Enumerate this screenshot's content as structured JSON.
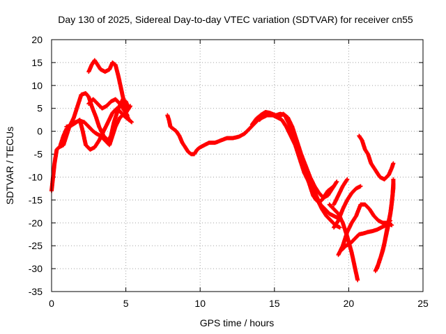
{
  "chart_data": {
    "type": "scatter",
    "title": "Day 130 of 2025, Sidereal Day-to-day VTEC variation (SDTVAR) for receiver cn55",
    "xlabel": "GPS time / hours",
    "ylabel": "SDTVAR / TECUs",
    "xlim": [
      0,
      25
    ],
    "ylim": [
      -35,
      20
    ],
    "xticks": [
      0,
      5,
      10,
      15,
      20,
      25
    ],
    "yticks": [
      -35,
      -30,
      -25,
      -20,
      -15,
      -10,
      -5,
      0,
      5,
      10,
      15,
      20
    ],
    "grid": true,
    "marker": "+",
    "series": [
      {
        "name": "s1",
        "color": "#ff0000",
        "points": [
          [
            0.0,
            -13
          ],
          [
            0.1,
            -10
          ],
          [
            0.2,
            -7
          ],
          [
            0.35,
            -4
          ],
          [
            0.5,
            -3.5
          ],
          [
            0.8,
            -3
          ],
          [
            1.0,
            -1
          ],
          [
            1.2,
            1
          ],
          [
            1.5,
            3
          ],
          [
            1.8,
            6
          ],
          [
            2.0,
            8
          ],
          [
            2.3,
            8.3
          ],
          [
            2.5,
            7.5
          ],
          [
            2.7,
            5.5
          ],
          [
            3.0,
            3
          ],
          [
            3.2,
            1
          ],
          [
            3.5,
            -1
          ],
          [
            3.8,
            -2
          ],
          [
            4.0,
            -1
          ],
          [
            4.2,
            2
          ],
          [
            4.5,
            5
          ],
          [
            4.8,
            7
          ],
          [
            5.0,
            6.5
          ],
          [
            5.2,
            5
          ]
        ]
      },
      {
        "name": "s2",
        "color": "#ff0000",
        "points": [
          [
            0.6,
            -3
          ],
          [
            0.8,
            -1
          ],
          [
            1.0,
            0.5
          ],
          [
            1.3,
            1.5
          ],
          [
            1.6,
            2
          ],
          [
            1.9,
            2.3
          ],
          [
            2.2,
            2
          ],
          [
            2.5,
            1
          ],
          [
            2.8,
            0
          ],
          [
            3.0,
            -0.5
          ],
          [
            3.3,
            -1
          ],
          [
            3.6,
            -2
          ],
          [
            3.9,
            -3
          ],
          [
            4.1,
            -1
          ],
          [
            4.3,
            1
          ],
          [
            4.6,
            3
          ],
          [
            5.0,
            4
          ],
          [
            5.3,
            5.5
          ]
        ]
      },
      {
        "name": "s3",
        "color": "#ff0000",
        "points": [
          [
            1.0,
            1
          ],
          [
            1.3,
            1.2
          ],
          [
            1.6,
            1.8
          ],
          [
            1.9,
            2.5
          ],
          [
            2.1,
            0
          ],
          [
            2.3,
            -3
          ],
          [
            2.6,
            -4
          ],
          [
            2.9,
            -3.5
          ],
          [
            3.2,
            -2
          ],
          [
            3.5,
            0
          ],
          [
            3.8,
            2
          ],
          [
            4.1,
            4
          ],
          [
            4.4,
            5
          ],
          [
            4.7,
            4
          ],
          [
            5.0,
            3
          ],
          [
            5.4,
            2
          ]
        ]
      },
      {
        "name": "s4",
        "color": "#ff0000",
        "points": [
          [
            2.5,
            13
          ],
          [
            2.7,
            14.5
          ],
          [
            2.9,
            15.5
          ],
          [
            3.1,
            14.5
          ],
          [
            3.3,
            13.5
          ],
          [
            3.6,
            13
          ],
          [
            3.9,
            13.5
          ],
          [
            4.1,
            15
          ],
          [
            4.3,
            14.5
          ],
          [
            4.5,
            12
          ],
          [
            4.7,
            9
          ],
          [
            4.9,
            6
          ],
          [
            5.0,
            4
          ],
          [
            5.2,
            2.5
          ]
        ]
      },
      {
        "name": "s5",
        "color": "#ff0000",
        "points": [
          [
            2.5,
            6
          ],
          [
            2.8,
            7
          ],
          [
            3.1,
            6
          ],
          [
            3.4,
            5
          ],
          [
            3.7,
            5.5
          ],
          [
            4.0,
            6.5
          ],
          [
            4.3,
            7
          ],
          [
            4.6,
            6
          ],
          [
            4.9,
            4.5
          ],
          [
            5.1,
            3.5
          ]
        ]
      },
      {
        "name": "s6",
        "color": "#ff0000",
        "points": [
          [
            7.8,
            3.5
          ],
          [
            7.9,
            2.5
          ],
          [
            8.0,
            1
          ],
          [
            8.2,
            0.5
          ],
          [
            8.4,
            0
          ],
          [
            8.6,
            -1
          ],
          [
            8.8,
            -2.5
          ],
          [
            9.0,
            -3.5
          ],
          [
            9.2,
            -4.5
          ],
          [
            9.4,
            -5
          ],
          [
            9.6,
            -5
          ],
          [
            9.8,
            -4
          ],
          [
            10.0,
            -3.5
          ],
          [
            10.3,
            -3
          ],
          [
            10.6,
            -2.5
          ],
          [
            11.0,
            -2.5
          ],
          [
            11.4,
            -2
          ],
          [
            11.8,
            -1.5
          ],
          [
            12.2,
            -1.5
          ],
          [
            12.6,
            -1.2
          ],
          [
            13.0,
            -0.5
          ],
          [
            13.3,
            0.5
          ],
          [
            13.6,
            1.5
          ],
          [
            13.9,
            2.5
          ],
          [
            14.2,
            3
          ],
          [
            14.5,
            3.5
          ],
          [
            14.8,
            3.5
          ],
          [
            15.1,
            3.5
          ],
          [
            15.4,
            3.8
          ],
          [
            15.7,
            3.5
          ],
          [
            16.0,
            1.5
          ],
          [
            16.3,
            -1
          ],
          [
            16.6,
            -4
          ],
          [
            16.9,
            -7
          ],
          [
            17.2,
            -9
          ],
          [
            17.5,
            -11
          ],
          [
            17.8,
            -14
          ],
          [
            18.1,
            -16
          ],
          [
            18.4,
            -17
          ],
          [
            18.7,
            -18
          ],
          [
            19.0,
            -18.5
          ],
          [
            19.3,
            -19
          ]
        ]
      },
      {
        "name": "s7",
        "color": "#ff0000",
        "points": [
          [
            14.0,
            2.5
          ],
          [
            14.3,
            3.5
          ],
          [
            14.6,
            4
          ],
          [
            14.9,
            3.5
          ],
          [
            15.2,
            3
          ],
          [
            15.5,
            2.5
          ],
          [
            15.8,
            1
          ],
          [
            16.1,
            -1
          ],
          [
            16.4,
            -3
          ],
          [
            16.7,
            -6
          ],
          [
            17.0,
            -9
          ],
          [
            17.3,
            -11
          ],
          [
            17.6,
            -13
          ],
          [
            17.9,
            -15
          ],
          [
            18.2,
            -17
          ],
          [
            18.5,
            -18.5
          ],
          [
            18.8,
            -19.5
          ],
          [
            19.1,
            -20.5
          ],
          [
            19.4,
            -21
          ]
        ]
      },
      {
        "name": "s8",
        "color": "#ff0000",
        "points": [
          [
            13.5,
            1.5
          ],
          [
            13.8,
            2.8
          ],
          [
            14.1,
            3.6
          ],
          [
            14.4,
            4.2
          ],
          [
            14.7,
            4
          ],
          [
            15.0,
            3.6
          ],
          [
            15.3,
            3.2
          ],
          [
            15.6,
            3.8
          ],
          [
            15.9,
            3
          ],
          [
            16.2,
            1
          ],
          [
            16.5,
            -2
          ],
          [
            16.8,
            -5
          ],
          [
            17.1,
            -7.5
          ],
          [
            17.4,
            -10
          ],
          [
            17.7,
            -12
          ],
          [
            18.0,
            -13.5
          ],
          [
            18.3,
            -14.5
          ],
          [
            18.6,
            -14
          ],
          [
            18.9,
            -12.5
          ],
          [
            19.2,
            -11
          ]
        ]
      },
      {
        "name": "s9",
        "color": "#ff0000",
        "points": [
          [
            17.0,
            -8
          ],
          [
            17.2,
            -10
          ],
          [
            17.4,
            -12
          ],
          [
            17.6,
            -14
          ],
          [
            17.8,
            -15
          ],
          [
            18.0,
            -15.5
          ],
          [
            18.2,
            -15
          ],
          [
            18.4,
            -14
          ],
          [
            18.6,
            -13
          ],
          [
            18.8,
            -12.5
          ],
          [
            19.0,
            -12
          ]
        ]
      },
      {
        "name": "s10",
        "color": "#ff0000",
        "points": [
          [
            19.0,
            -21
          ],
          [
            19.3,
            -19.5
          ],
          [
            19.6,
            -17
          ],
          [
            19.9,
            -15
          ],
          [
            20.2,
            -13.5
          ],
          [
            20.5,
            -12.5
          ],
          [
            20.8,
            -12
          ]
        ]
      },
      {
        "name": "s11",
        "color": "#ff0000",
        "points": [
          [
            19.0,
            -16
          ],
          [
            19.3,
            -14
          ],
          [
            19.6,
            -12
          ],
          [
            19.9,
            -10.5
          ]
        ]
      },
      {
        "name": "s12",
        "color": "#ff0000",
        "points": [
          [
            19.5,
            -26
          ],
          [
            19.8,
            -25
          ],
          [
            20.1,
            -24.5
          ],
          [
            20.4,
            -23.5
          ],
          [
            20.7,
            -22.5
          ],
          [
            21.0,
            -22.3
          ],
          [
            21.3,
            -22
          ],
          [
            21.6,
            -21.8
          ],
          [
            21.9,
            -21.5
          ],
          [
            22.2,
            -21
          ],
          [
            22.5,
            -20.5
          ],
          [
            22.8,
            -19.5
          ]
        ]
      },
      {
        "name": "s13",
        "color": "#ff0000",
        "points": [
          [
            19.3,
            -27
          ],
          [
            19.6,
            -25
          ],
          [
            19.9,
            -22
          ],
          [
            20.2,
            -20
          ],
          [
            20.5,
            -18.5
          ],
          [
            20.8,
            -16
          ],
          [
            21.1,
            -16
          ],
          [
            21.4,
            -17
          ],
          [
            21.7,
            -18.5
          ],
          [
            22.0,
            -19.5
          ],
          [
            22.3,
            -20
          ],
          [
            22.6,
            -20
          ],
          [
            22.9,
            -20.5
          ]
        ]
      },
      {
        "name": "s14",
        "color": "#ff0000",
        "points": [
          [
            18.7,
            -16
          ],
          [
            19.0,
            -17
          ],
          [
            19.3,
            -18
          ],
          [
            19.6,
            -20
          ],
          [
            19.9,
            -23
          ],
          [
            20.2,
            -26.5
          ],
          [
            20.4,
            -29.5
          ],
          [
            20.6,
            -32.5
          ]
        ]
      },
      {
        "name": "s15",
        "color": "#ff0000",
        "points": [
          [
            20.7,
            -1
          ],
          [
            20.9,
            -2
          ],
          [
            21.1,
            -4
          ],
          [
            21.3,
            -5
          ],
          [
            21.5,
            -7
          ],
          [
            21.7,
            -8
          ],
          [
            21.9,
            -9
          ],
          [
            22.1,
            -10
          ],
          [
            22.4,
            -10.5
          ],
          [
            22.7,
            -9.5
          ],
          [
            22.9,
            -8
          ],
          [
            23.0,
            -7
          ]
        ]
      },
      {
        "name": "s16",
        "color": "#ff0000",
        "points": [
          [
            21.8,
            -30.5
          ],
          [
            22.0,
            -29
          ],
          [
            22.2,
            -27
          ],
          [
            22.4,
            -24.5
          ],
          [
            22.6,
            -21
          ],
          [
            22.8,
            -18
          ],
          [
            22.9,
            -15.5
          ],
          [
            23.0,
            -12.5
          ],
          [
            23.0,
            -10.5
          ]
        ]
      },
      {
        "name": "s17",
        "color": "#ff0000",
        "points": [
          [
            21.9,
            -30
          ],
          [
            22.1,
            -28
          ],
          [
            22.3,
            -26
          ],
          [
            22.5,
            -23
          ],
          [
            22.7,
            -20
          ],
          [
            22.85,
            -17
          ],
          [
            22.95,
            -14
          ],
          [
            23.0,
            -11.5
          ]
        ]
      }
    ]
  }
}
